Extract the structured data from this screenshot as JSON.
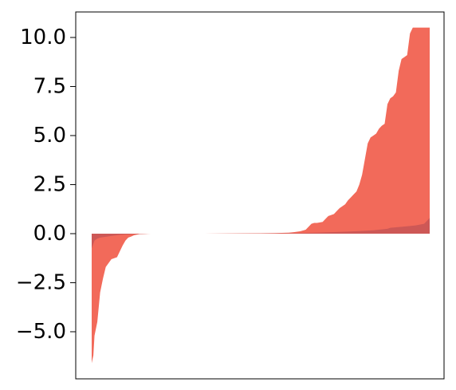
{
  "chart_data": {
    "type": "area",
    "title": "",
    "xlabel": "",
    "ylabel": "",
    "xlim": [
      0,
      120
    ],
    "ylim": [
      -7.4,
      11.3
    ],
    "y_ticks": [
      -5.0,
      -2.5,
      0.0,
      2.5,
      5.0,
      7.5,
      10.0
    ],
    "y_tick_labels": [
      "−5.0",
      "−2.5",
      "0.0",
      "2.5",
      "5.0",
      "7.5",
      "10.0"
    ],
    "x_ticks_shown": false,
    "grid": false,
    "legend": "none",
    "series": [
      {
        "color": "#f26a5a",
        "opacity": 1.0,
        "x": [
          0,
          0.6,
          1,
          2,
          3,
          4,
          5,
          6,
          7,
          8,
          9,
          10,
          11,
          12,
          13,
          14,
          15,
          17,
          19,
          21,
          23,
          25,
          30,
          40,
          50,
          60,
          65,
          70,
          72,
          74,
          76,
          78,
          79,
          80,
          82,
          83,
          84,
          86,
          87,
          88,
          90,
          91,
          92,
          93,
          94,
          95,
          96,
          97,
          98,
          99,
          100,
          100.5,
          101,
          102,
          103,
          104,
          105,
          106,
          107,
          108,
          109,
          110,
          111,
          112,
          113,
          114,
          115,
          116,
          117,
          118,
          119,
          120
        ],
        "y": [
          -6.6,
          -6.2,
          -5.2,
          -4.5,
          -3.0,
          -2.3,
          -1.7,
          -1.5,
          -1.3,
          -1.25,
          -1.2,
          -0.9,
          -0.6,
          -0.35,
          -0.2,
          -0.15,
          -0.08,
          -0.02,
          -0.01,
          0.0,
          0.0,
          0.0,
          0.0,
          0.0,
          0.01,
          0.02,
          0.03,
          0.05,
          0.08,
          0.12,
          0.2,
          0.5,
          0.55,
          0.55,
          0.6,
          0.75,
          0.9,
          1.0,
          1.15,
          1.3,
          1.5,
          1.7,
          1.85,
          2.0,
          2.15,
          2.5,
          3.0,
          3.8,
          4.6,
          4.9,
          5.0,
          5.05,
          5.1,
          5.35,
          5.5,
          5.6,
          6.6,
          6.9,
          7.0,
          7.2,
          8.3,
          8.9,
          9.0,
          9.1,
          10.2,
          10.5,
          10.5,
          10.5,
          10.5,
          10.5,
          10.5,
          10.5
        ]
      },
      {
        "color": "#cd5856",
        "opacity": 1.0,
        "x": [
          0,
          1,
          2,
          3,
          4,
          5,
          6,
          7,
          8,
          9,
          10,
          12,
          14,
          16,
          18,
          20,
          25,
          40,
          60,
          70,
          80,
          90,
          95,
          100,
          105,
          106,
          110,
          115,
          118,
          119,
          120
        ],
        "y": [
          -0.75,
          -0.35,
          -0.25,
          -0.2,
          -0.18,
          -0.16,
          -0.14,
          -0.12,
          -0.1,
          -0.08,
          -0.06,
          -0.04,
          -0.03,
          -0.02,
          -0.01,
          0.0,
          0.0,
          0.0,
          0.01,
          0.02,
          0.05,
          0.1,
          0.13,
          0.17,
          0.25,
          0.3,
          0.35,
          0.42,
          0.5,
          0.65,
          0.8
        ]
      }
    ]
  }
}
